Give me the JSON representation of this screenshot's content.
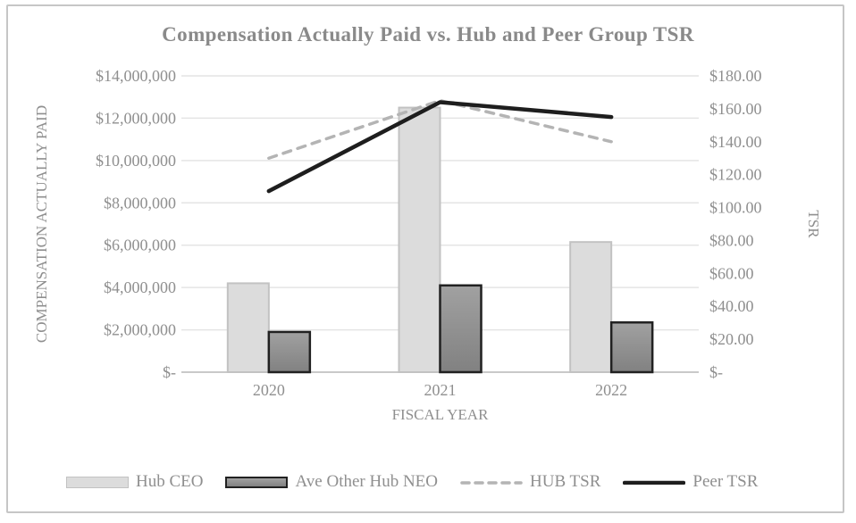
{
  "title": "Compensation Actually Paid vs. Hub and Peer Group TSR",
  "chart_data": {
    "type": "combo-bar-line",
    "title": "Compensation Actually Paid vs. Hub and Peer Group TSR",
    "categories": [
      "2020",
      "2021",
      "2022"
    ],
    "x_axis": {
      "title": "FISCAL YEAR"
    },
    "left_axis": {
      "title": "COMPENSATION ACTUALLY PAID",
      "min": 0,
      "max": 14000000,
      "step": 2000000,
      "tick_labels": [
        "$14,000,000",
        "$12,000,000",
        "$10,000,000",
        "$8,000,000",
        "$6,000,000",
        "$4,000,000",
        "$2,000,000",
        "$-"
      ]
    },
    "right_axis": {
      "title": "TSR",
      "min": 0,
      "max": 180,
      "step": 20,
      "tick_labels": [
        "$180.00",
        "$160.00",
        "$140.00",
        "$120.00",
        "$100.00",
        "$80.00",
        "$60.00",
        "$40.00",
        "$20.00",
        "$-"
      ]
    },
    "series": [
      {
        "name": "Hub CEO",
        "type": "bar",
        "axis": "left",
        "values": [
          4200000,
          12500000,
          6150000
        ],
        "fill": "#dcdcdc",
        "stroke": "#c2c2c2"
      },
      {
        "name": "Ave Other Hub NEO",
        "type": "bar",
        "axis": "left",
        "values": [
          1900000,
          4100000,
          2350000
        ],
        "fill_gradient": [
          "#a1a1a1",
          "#818181"
        ],
        "stroke": "#212121"
      },
      {
        "name": "HUB TSR",
        "type": "line",
        "axis": "right",
        "values": [
          130,
          165,
          140
        ],
        "stroke": "#b4b4b4",
        "dashed": true
      },
      {
        "name": "Peer TSR",
        "type": "line",
        "axis": "right",
        "values": [
          110,
          164,
          155
        ],
        "stroke": "#1e1e1e",
        "dashed": false
      }
    ],
    "legend": {
      "position": "bottom",
      "items": [
        "Hub CEO",
        "Ave Other Hub NEO",
        "HUB TSR",
        "Peer TSR"
      ]
    },
    "grid": true
  },
  "colors": {
    "title_text": "#8a8a8a",
    "axis_text": "#8f8f8f",
    "gridline": "#e4e4e4",
    "axis_line": "#c9c9c9",
    "frame_border": "#c6c6c6",
    "background": "#ffffff"
  }
}
